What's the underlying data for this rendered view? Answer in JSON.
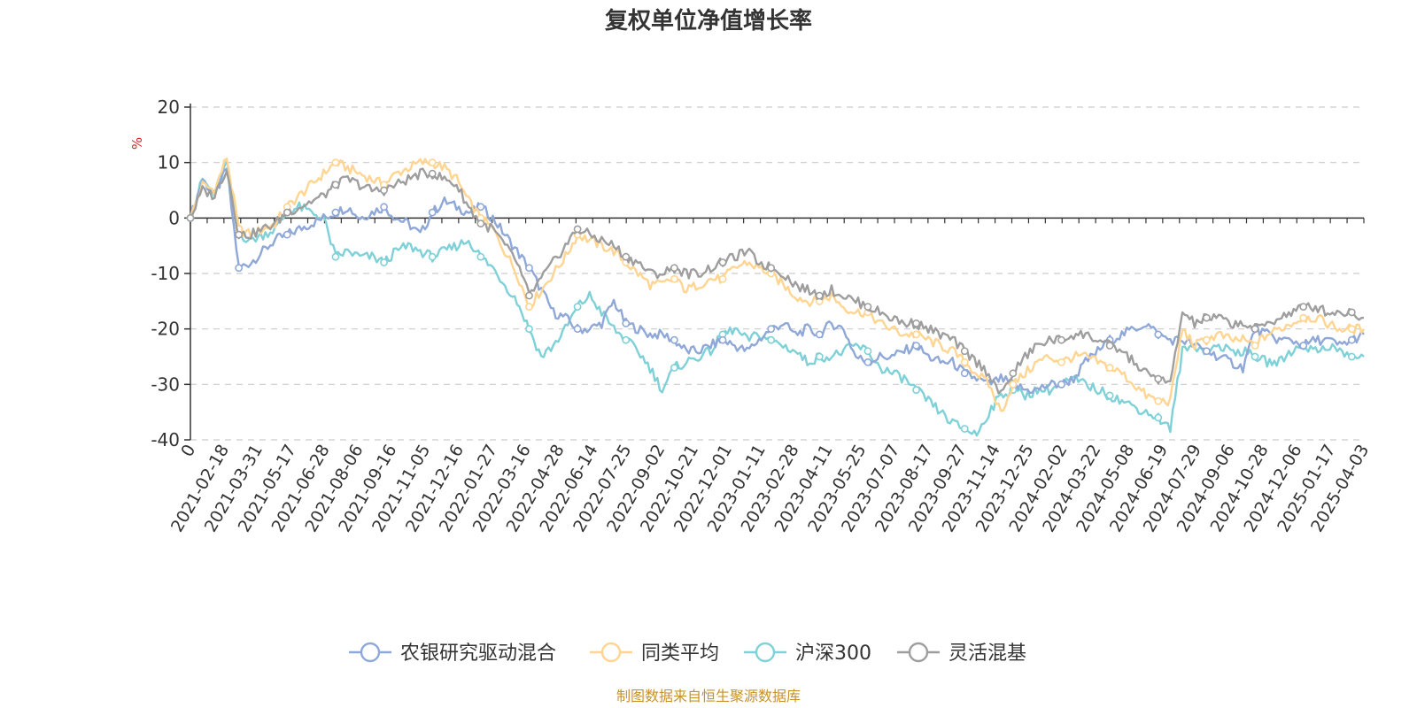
{
  "chart_data": {
    "type": "line",
    "title": "复权单位净值增长率",
    "ylabel": "%",
    "ylim": [
      -40,
      20
    ],
    "yticks": [
      20,
      10,
      0,
      -10,
      -20,
      -30,
      -40
    ],
    "grid": true,
    "legend_position": "bottom-center",
    "x_tick_labels": [
      "0",
      "2021-02-18",
      "2021-03-31",
      "2021-05-17",
      "2021-06-28",
      "2021-08-06",
      "2021-09-16",
      "2021-11-05",
      "2021-12-16",
      "2022-01-27",
      "2022-03-16",
      "2022-04-28",
      "2022-06-14",
      "2022-07-25",
      "2022-09-02",
      "2022-10-21",
      "2022-12-01",
      "2023-01-11",
      "2023-02-28",
      "2023-04-11",
      "2023-05-25",
      "2023-07-07",
      "2023-08-17",
      "2023-09-27",
      "2023-11-14",
      "2023-12-25",
      "2024-02-02",
      "2024-03-22",
      "2024-05-08",
      "2024-06-19",
      "2024-07-29",
      "2024-09-06",
      "2024-10-28",
      "2024-12-06",
      "2025-01-17",
      "2025-04-03"
    ],
    "series": [
      {
        "name": "农银研究驱动混合",
        "color": "#8fa8d8",
        "values": [
          0,
          7,
          4,
          9,
          -9,
          -8,
          -6,
          -4,
          -3,
          -2,
          -1,
          0,
          1,
          2,
          0,
          1,
          2,
          0,
          -1,
          -3,
          1,
          3,
          2,
          1,
          2,
          0,
          -3,
          -6,
          -9,
          -13,
          -17,
          -18,
          -20,
          -20,
          -19,
          -15,
          -19,
          -20,
          -21,
          -21,
          -22,
          -24,
          -24,
          -23,
          -22,
          -23,
          -24,
          -22,
          -20,
          -19,
          -21,
          -20,
          -21,
          -19,
          -20,
          -25,
          -26,
          -25,
          -25,
          -24,
          -23,
          -25,
          -26,
          -26,
          -28,
          -29,
          -30,
          -29,
          -30,
          -31,
          -31,
          -30,
          -30,
          -29,
          -26,
          -24,
          -22,
          -21,
          -20,
          -19,
          -21,
          -22,
          -22,
          -23,
          -24,
          -25,
          -26,
          -27,
          -20,
          -21,
          -22,
          -22,
          -23,
          -22,
          -22,
          -23,
          -22,
          -21
        ]
      },
      {
        "name": "同类平均",
        "color": "#ffd591",
        "values": [
          0,
          6,
          5,
          11,
          -2,
          -3,
          -2,
          -1,
          2,
          4,
          6,
          8,
          10,
          9,
          8,
          7,
          6,
          8,
          9,
          10,
          10,
          9,
          7,
          3,
          0,
          -2,
          -6,
          -10,
          -16,
          -13,
          -10,
          -7,
          -3,
          -4,
          -5,
          -6,
          -8,
          -10,
          -12,
          -12,
          -11,
          -13,
          -12,
          -11,
          -11,
          -9,
          -8,
          -9,
          -10,
          -12,
          -14,
          -15,
          -15,
          -14,
          -16,
          -17,
          -17,
          -19,
          -20,
          -21,
          -21,
          -22,
          -23,
          -24,
          -26,
          -28,
          -30,
          -35,
          -30,
          -28,
          -26,
          -25,
          -26,
          -25,
          -25,
          -26,
          -27,
          -28,
          -30,
          -32,
          -33,
          -33,
          -20,
          -23,
          -22,
          -21,
          -22,
          -22,
          -23,
          -21,
          -20,
          -19,
          -18,
          -18,
          -19,
          -20,
          -20,
          -20
        ]
      },
      {
        "name": "沪深300",
        "color": "#7fd1d8",
        "values": [
          0,
          7,
          4,
          10,
          -3,
          -4,
          -3,
          -2,
          1,
          2,
          1,
          0,
          -7,
          -6,
          -7,
          -7,
          -8,
          -6,
          -5,
          -6,
          -7,
          -6,
          -5,
          -4,
          -7,
          -9,
          -12,
          -15,
          -20,
          -25,
          -23,
          -20,
          -16,
          -14,
          -17,
          -20,
          -22,
          -24,
          -27,
          -31,
          -27,
          -26,
          -25,
          -24,
          -21,
          -20,
          -22,
          -21,
          -22,
          -23,
          -24,
          -26,
          -25,
          -25,
          -24,
          -23,
          -24,
          -27,
          -28,
          -29,
          -31,
          -33,
          -35,
          -37,
          -38,
          -39,
          -35,
          -32,
          -31,
          -32,
          -31,
          -31,
          -30,
          -29,
          -30,
          -31,
          -32,
          -33,
          -34,
          -35,
          -36,
          -38,
          -24,
          -23,
          -24,
          -23,
          -24,
          -24,
          -25,
          -26,
          -26,
          -24,
          -23,
          -24,
          -23,
          -24,
          -25,
          -25
        ]
      },
      {
        "name": "灵活混基",
        "color": "#9e9e9e",
        "values": [
          0,
          5,
          4,
          9,
          -3,
          -3,
          -2,
          -1,
          1,
          2,
          3,
          4,
          6,
          7,
          6,
          5,
          5,
          6,
          7,
          8,
          8,
          7,
          6,
          2,
          -1,
          -2,
          -5,
          -8,
          -14,
          -11,
          -8,
          -5,
          -2,
          -3,
          -4,
          -5,
          -7,
          -8,
          -10,
          -10,
          -9,
          -10,
          -10,
          -9,
          -8,
          -7,
          -6,
          -8,
          -9,
          -10,
          -12,
          -13,
          -14,
          -13,
          -14,
          -15,
          -16,
          -17,
          -18,
          -19,
          -19,
          -20,
          -21,
          -22,
          -24,
          -26,
          -28,
          -32,
          -28,
          -25,
          -23,
          -22,
          -22,
          -21,
          -21,
          -22,
          -23,
          -24,
          -26,
          -28,
          -29,
          -30,
          -17,
          -19,
          -18,
          -18,
          -19,
          -19,
          -20,
          -19,
          -18,
          -17,
          -16,
          -16,
          -17,
          -17,
          -17,
          -18
        ]
      }
    ],
    "source": "制图数据来自恒生聚源数据库"
  }
}
